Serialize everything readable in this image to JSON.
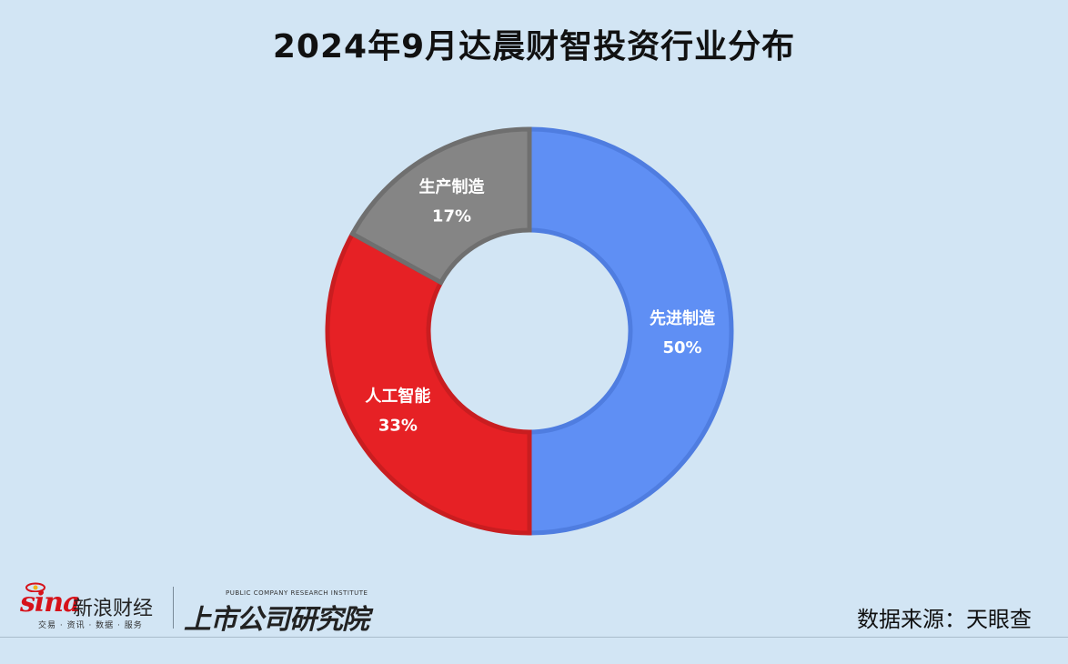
{
  "title": "2024年9月达晨财智投资行业分布",
  "chart_data": {
    "type": "pie",
    "style": "donut",
    "title": "2024年9月达晨财智投资行业分布",
    "slices": [
      {
        "label": "先进制造",
        "value": 50,
        "value_label": "50%",
        "color": "#5f8ff4"
      },
      {
        "label": "人工智能",
        "value": 33,
        "value_label": "33%",
        "color": "#e62125"
      },
      {
        "label": "生产制造",
        "value": 17,
        "value_label": "17%",
        "color": "#858585"
      }
    ],
    "start_angle": "12 o'clock",
    "direction": "clockwise",
    "legend": "none"
  },
  "footer": {
    "sina_word": "sina",
    "sina_name": "新浪财经",
    "sina_tagline": "交易 · 资讯 · 数据 · 服务",
    "research_en": "PUBLIC COMPANY RESEARCH INSTITUTE",
    "research_cn": "上市公司研究院",
    "source": "数据来源：天眼查"
  }
}
